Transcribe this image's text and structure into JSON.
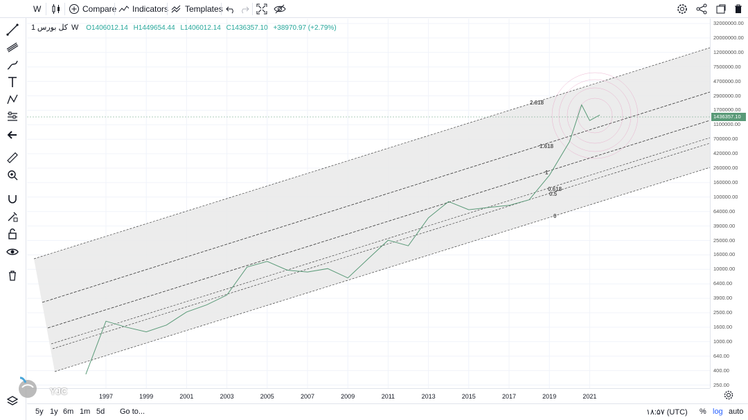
{
  "toolbar": {
    "interval": "W",
    "compare_label": "Compare",
    "indicators_label": "Indicators",
    "templates_label": "Templates"
  },
  "legend": {
    "symbol": "کل بورس",
    "timeframe": "1W",
    "open": "O1406012.14",
    "high": "H1449654.44",
    "low": "L1406012.14",
    "close": "C1436357.10",
    "change": "+38970.97 (+2.79%)"
  },
  "price_axis": {
    "ticks": [
      "32000000.00",
      "20000000.00",
      "12000000.00",
      "7500000.00",
      "4700000.00",
      "2900000.00",
      "1700000.00",
      "1100000.00",
      "700000.00",
      "420000.00",
      "260000.00",
      "160000.00",
      "100000.00",
      "64000.00",
      "39000.00",
      "25000.00",
      "16000.00",
      "10000.00",
      "6400.00",
      "3900.00",
      "2500.00",
      "1600.00",
      "1000.00",
      "640.00",
      "400.00",
      "250.00"
    ],
    "last_price": "1436357.10"
  },
  "time_axis": {
    "ticks": [
      "1997",
      "1999",
      "2001",
      "2003",
      "2005",
      "2007",
      "2009",
      "2011",
      "2013",
      "2015",
      "2017",
      "2019",
      "2021"
    ]
  },
  "fib_levels": {
    "l2618": "2.618",
    "l1618": "1.618",
    "l1": "1",
    "l0618": "0.618",
    "l05": "0.5",
    "l0": "0"
  },
  "bottombar": {
    "ranges": [
      "5y",
      "1y",
      "6m",
      "1m",
      "5d"
    ],
    "goto": "Go to...",
    "clock": "۱۸:۵۷ (UTC)",
    "percent": "%",
    "log": "log",
    "auto": "auto"
  },
  "watermark": {
    "text": "YJC"
  },
  "chart_data": {
    "type": "line",
    "scale": "log",
    "x": [
      "1996",
      "1997",
      "1998",
      "1999",
      "2000",
      "2001",
      "2002",
      "2003",
      "2004",
      "2005",
      "2006",
      "2007",
      "2008",
      "2009",
      "2010",
      "2011",
      "2012",
      "2013",
      "2014",
      "2015",
      "2016",
      "2017",
      "2018",
      "2019",
      "2020",
      "2020.6",
      "2021",
      "2021.5"
    ],
    "y": [
      300,
      1700,
      1400,
      1200,
      1500,
      2300,
      2900,
      4000,
      10000,
      12000,
      9000,
      8500,
      9500,
      7000,
      13000,
      24000,
      20000,
      50000,
      85000,
      65000,
      70000,
      75000,
      90000,
      200000,
      600000,
      2000000,
      1200000,
      1436357
    ],
    "ylim": [
      250,
      32000000
    ],
    "grid": true
  }
}
